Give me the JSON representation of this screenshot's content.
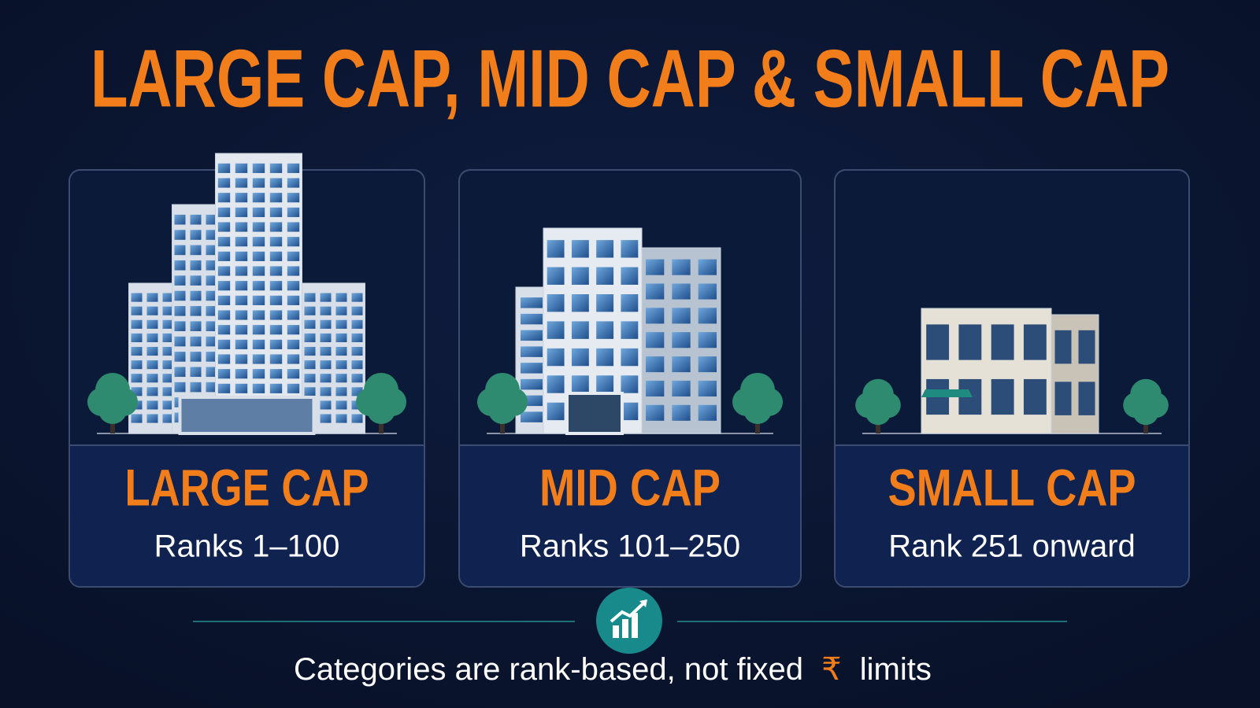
{
  "title": "LARGE CAP, MID CAP & SMALL CAP",
  "cards": [
    {
      "label": "LARGE CAP",
      "range": "Ranks 1–100"
    },
    {
      "label": "MID CAP",
      "range": "Ranks 101–250"
    },
    {
      "label": "SMALL CAP",
      "range": "Rank 251 onward"
    }
  ],
  "footer": {
    "text_before": "Categories are rank-based, not fixed",
    "currency": "₹",
    "text_after": "limits"
  }
}
